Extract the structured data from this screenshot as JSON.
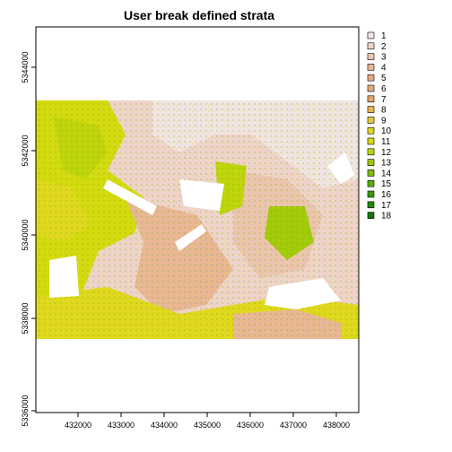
{
  "title": "User break defined strata",
  "map": {
    "x_ticks": [
      "432000",
      "433000",
      "434000",
      "435000",
      "436000",
      "437000",
      "438000"
    ],
    "y_ticks": [
      "5336000",
      "5338000",
      "5340000",
      "5342000",
      "5344000"
    ],
    "x_range": [
      431100,
      438600
    ],
    "y_range": [
      5335900,
      5345000
    ],
    "raster_extent": {
      "x": [
        431100,
        438600
      ],
      "y": [
        5337800,
        5343200
      ]
    }
  },
  "legend": {
    "items": [
      {
        "label": "1",
        "color": "#f2e4e4"
      },
      {
        "label": "2",
        "color": "#efd3cc"
      },
      {
        "label": "3",
        "color": "#ecc4b2"
      },
      {
        "label": "4",
        "color": "#e9b698"
      },
      {
        "label": "5",
        "color": "#e8aa86"
      },
      {
        "label": "6",
        "color": "#e7a877"
      },
      {
        "label": "7",
        "color": "#e6a866"
      },
      {
        "label": "8",
        "color": "#e6b652"
      },
      {
        "label": "9",
        "color": "#e2cc38"
      },
      {
        "label": "10",
        "color": "#e0d81e"
      },
      {
        "label": "11",
        "color": "#d4da10"
      },
      {
        "label": "12",
        "color": "#bfd40c"
      },
      {
        "label": "13",
        "color": "#a2ca0a"
      },
      {
        "label": "14",
        "color": "#7fbc0a"
      },
      {
        "label": "15",
        "color": "#5cac0a"
      },
      {
        "label": "16",
        "color": "#399a0a"
      },
      {
        "label": "17",
        "color": "#1f8a0a"
      },
      {
        "label": "18",
        "color": "#0e7a0a"
      }
    ]
  }
}
